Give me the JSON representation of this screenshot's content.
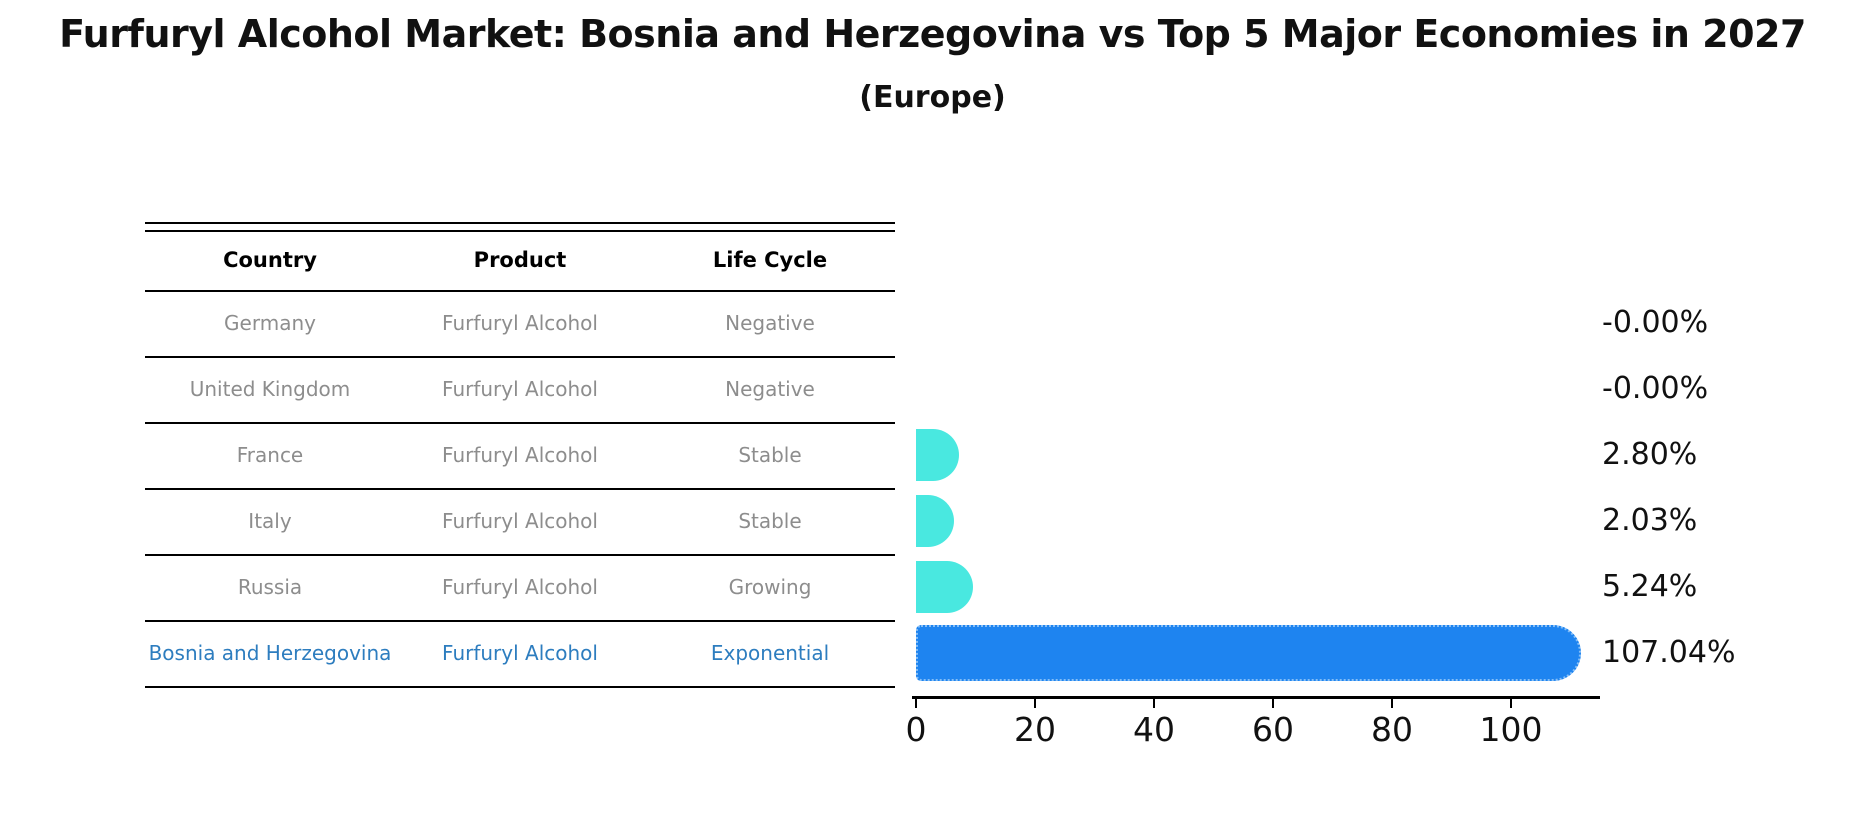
{
  "title": "Furfuryl Alcohol Market: Bosnia and Herzegovina vs Top 5 Major Economies in 2027",
  "subtitle": "(Europe)",
  "table": {
    "headers": [
      "Country",
      "Product",
      "Life Cycle"
    ],
    "rows": [
      {
        "country": "Germany",
        "product": "Furfuryl Alcohol",
        "life_cycle": "Negative",
        "highlight": false
      },
      {
        "country": "United Kingdom",
        "product": "Furfuryl Alcohol",
        "life_cycle": "Negative",
        "highlight": false
      },
      {
        "country": "France",
        "product": "Furfuryl Alcohol",
        "life_cycle": "Stable",
        "highlight": false
      },
      {
        "country": "Italy",
        "product": "Furfuryl Alcohol",
        "life_cycle": "Stable",
        "highlight": false
      },
      {
        "country": "Russia",
        "product": "Furfuryl Alcohol",
        "life_cycle": "Growing",
        "highlight": false
      },
      {
        "country": "Bosnia and Herzegovina",
        "product": "Furfuryl Alcohol",
        "life_cycle": "Exponential",
        "highlight": true
      }
    ]
  },
  "chart_data": {
    "type": "bar",
    "orientation": "horizontal",
    "title": "Furfuryl Alcohol Market: Bosnia and Herzegovina vs Top 5 Major Economies in 2027 (Europe)",
    "categories": [
      "Germany",
      "United Kingdom",
      "France",
      "Italy",
      "Russia",
      "Bosnia and Herzegovina"
    ],
    "values": [
      -0.0,
      -0.0,
      2.8,
      2.03,
      5.24,
      107.04
    ],
    "value_labels": [
      "-0.00%",
      "-0.00%",
      "2.80%",
      "2.03%",
      "5.24%",
      "107.04%"
    ],
    "highlight_index": 5,
    "xlabel": "",
    "ylabel": "",
    "xlim": [
      0,
      115
    ],
    "xticks": [
      0,
      20,
      40,
      60,
      80,
      100
    ],
    "grid": false,
    "legend": false
  },
  "colors": {
    "background": "#ffffff",
    "bar_cyan": "#49e8e0",
    "bar_blue": "#1e84f0",
    "bar_blue_border": "#85bef7",
    "table_text": "#8d8d8d",
    "highlight_text": "#2d7dbf",
    "line": "#000000",
    "label_text": "#111111"
  }
}
